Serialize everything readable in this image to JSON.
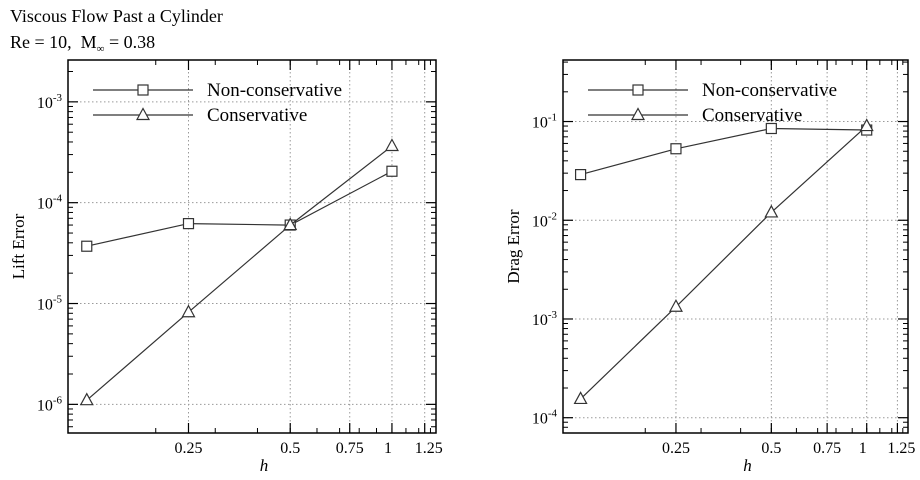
{
  "header": {
    "title": "Viscous Flow Past a Cylinder",
    "subtitle_re": "Re = 10,",
    "subtitle_mach_symbol": "M",
    "subtitle_mach_subscript": "∞",
    "subtitle_mach_value": "= 0.38"
  },
  "colors": {
    "axis": "#000000",
    "grid": "#9a9a9a",
    "series": "#333333",
    "background": "#ffffff"
  },
  "chart_data": [
    {
      "type": "line",
      "title": "",
      "xlabel": "h",
      "ylabel": "Lift Error",
      "xscale": "log",
      "yscale": "log",
      "xlim": [
        0.11,
        1.35
      ],
      "ylim": [
        5.2e-07,
        0.0026
      ],
      "x_ticks": [
        0.25,
        0.5,
        0.75,
        1,
        1.25
      ],
      "x_tick_labels": [
        "0.25",
        "0.5",
        "0.75",
        "1",
        "1.25"
      ],
      "y_ticks": [
        1e-06,
        1e-05,
        0.0001,
        0.001
      ],
      "y_tick_mantissa": [
        "10",
        "10",
        "10",
        "10"
      ],
      "y_tick_exponent": [
        "-6",
        "-5",
        "-4",
        "-3"
      ],
      "grid": true,
      "legend_position": "top-left",
      "series": [
        {
          "name": "Non-conservative",
          "marker": "square",
          "x": [
            0.125,
            0.25,
            0.5,
            1.0
          ],
          "y": [
            3.7e-05,
            6.2e-05,
            6e-05,
            0.000205
          ]
        },
        {
          "name": "Conservative",
          "marker": "triangle",
          "x": [
            0.125,
            0.25,
            0.5,
            1.0
          ],
          "y": [
            1.1e-06,
            8.2e-06,
            6e-05,
            0.000365
          ]
        }
      ]
    },
    {
      "type": "line",
      "title": "",
      "xlabel": "h",
      "ylabel": "Drag Error",
      "xscale": "log",
      "yscale": "log",
      "xlim": [
        0.11,
        1.35
      ],
      "ylim": [
        7e-05,
        0.42
      ],
      "x_ticks": [
        0.25,
        0.5,
        0.75,
        1,
        1.25
      ],
      "x_tick_labels": [
        "0.25",
        "0.5",
        "0.75",
        "1",
        "1.25"
      ],
      "y_ticks": [
        0.0001,
        0.001,
        0.01,
        0.1
      ],
      "y_tick_mantissa": [
        "10",
        "10",
        "10",
        "10"
      ],
      "y_tick_exponent": [
        "-4",
        "-3",
        "-2",
        "-1"
      ],
      "grid": true,
      "legend_position": "top-left",
      "series": [
        {
          "name": "Non-conservative",
          "marker": "square",
          "x": [
            0.125,
            0.25,
            0.5,
            1.0
          ],
          "y": [
            0.029,
            0.053,
            0.085,
            0.082
          ]
        },
        {
          "name": "Conservative",
          "marker": "triangle",
          "x": [
            0.125,
            0.25,
            0.5,
            1.0
          ],
          "y": [
            0.000155,
            0.00133,
            0.012,
            0.09
          ]
        }
      ]
    }
  ]
}
